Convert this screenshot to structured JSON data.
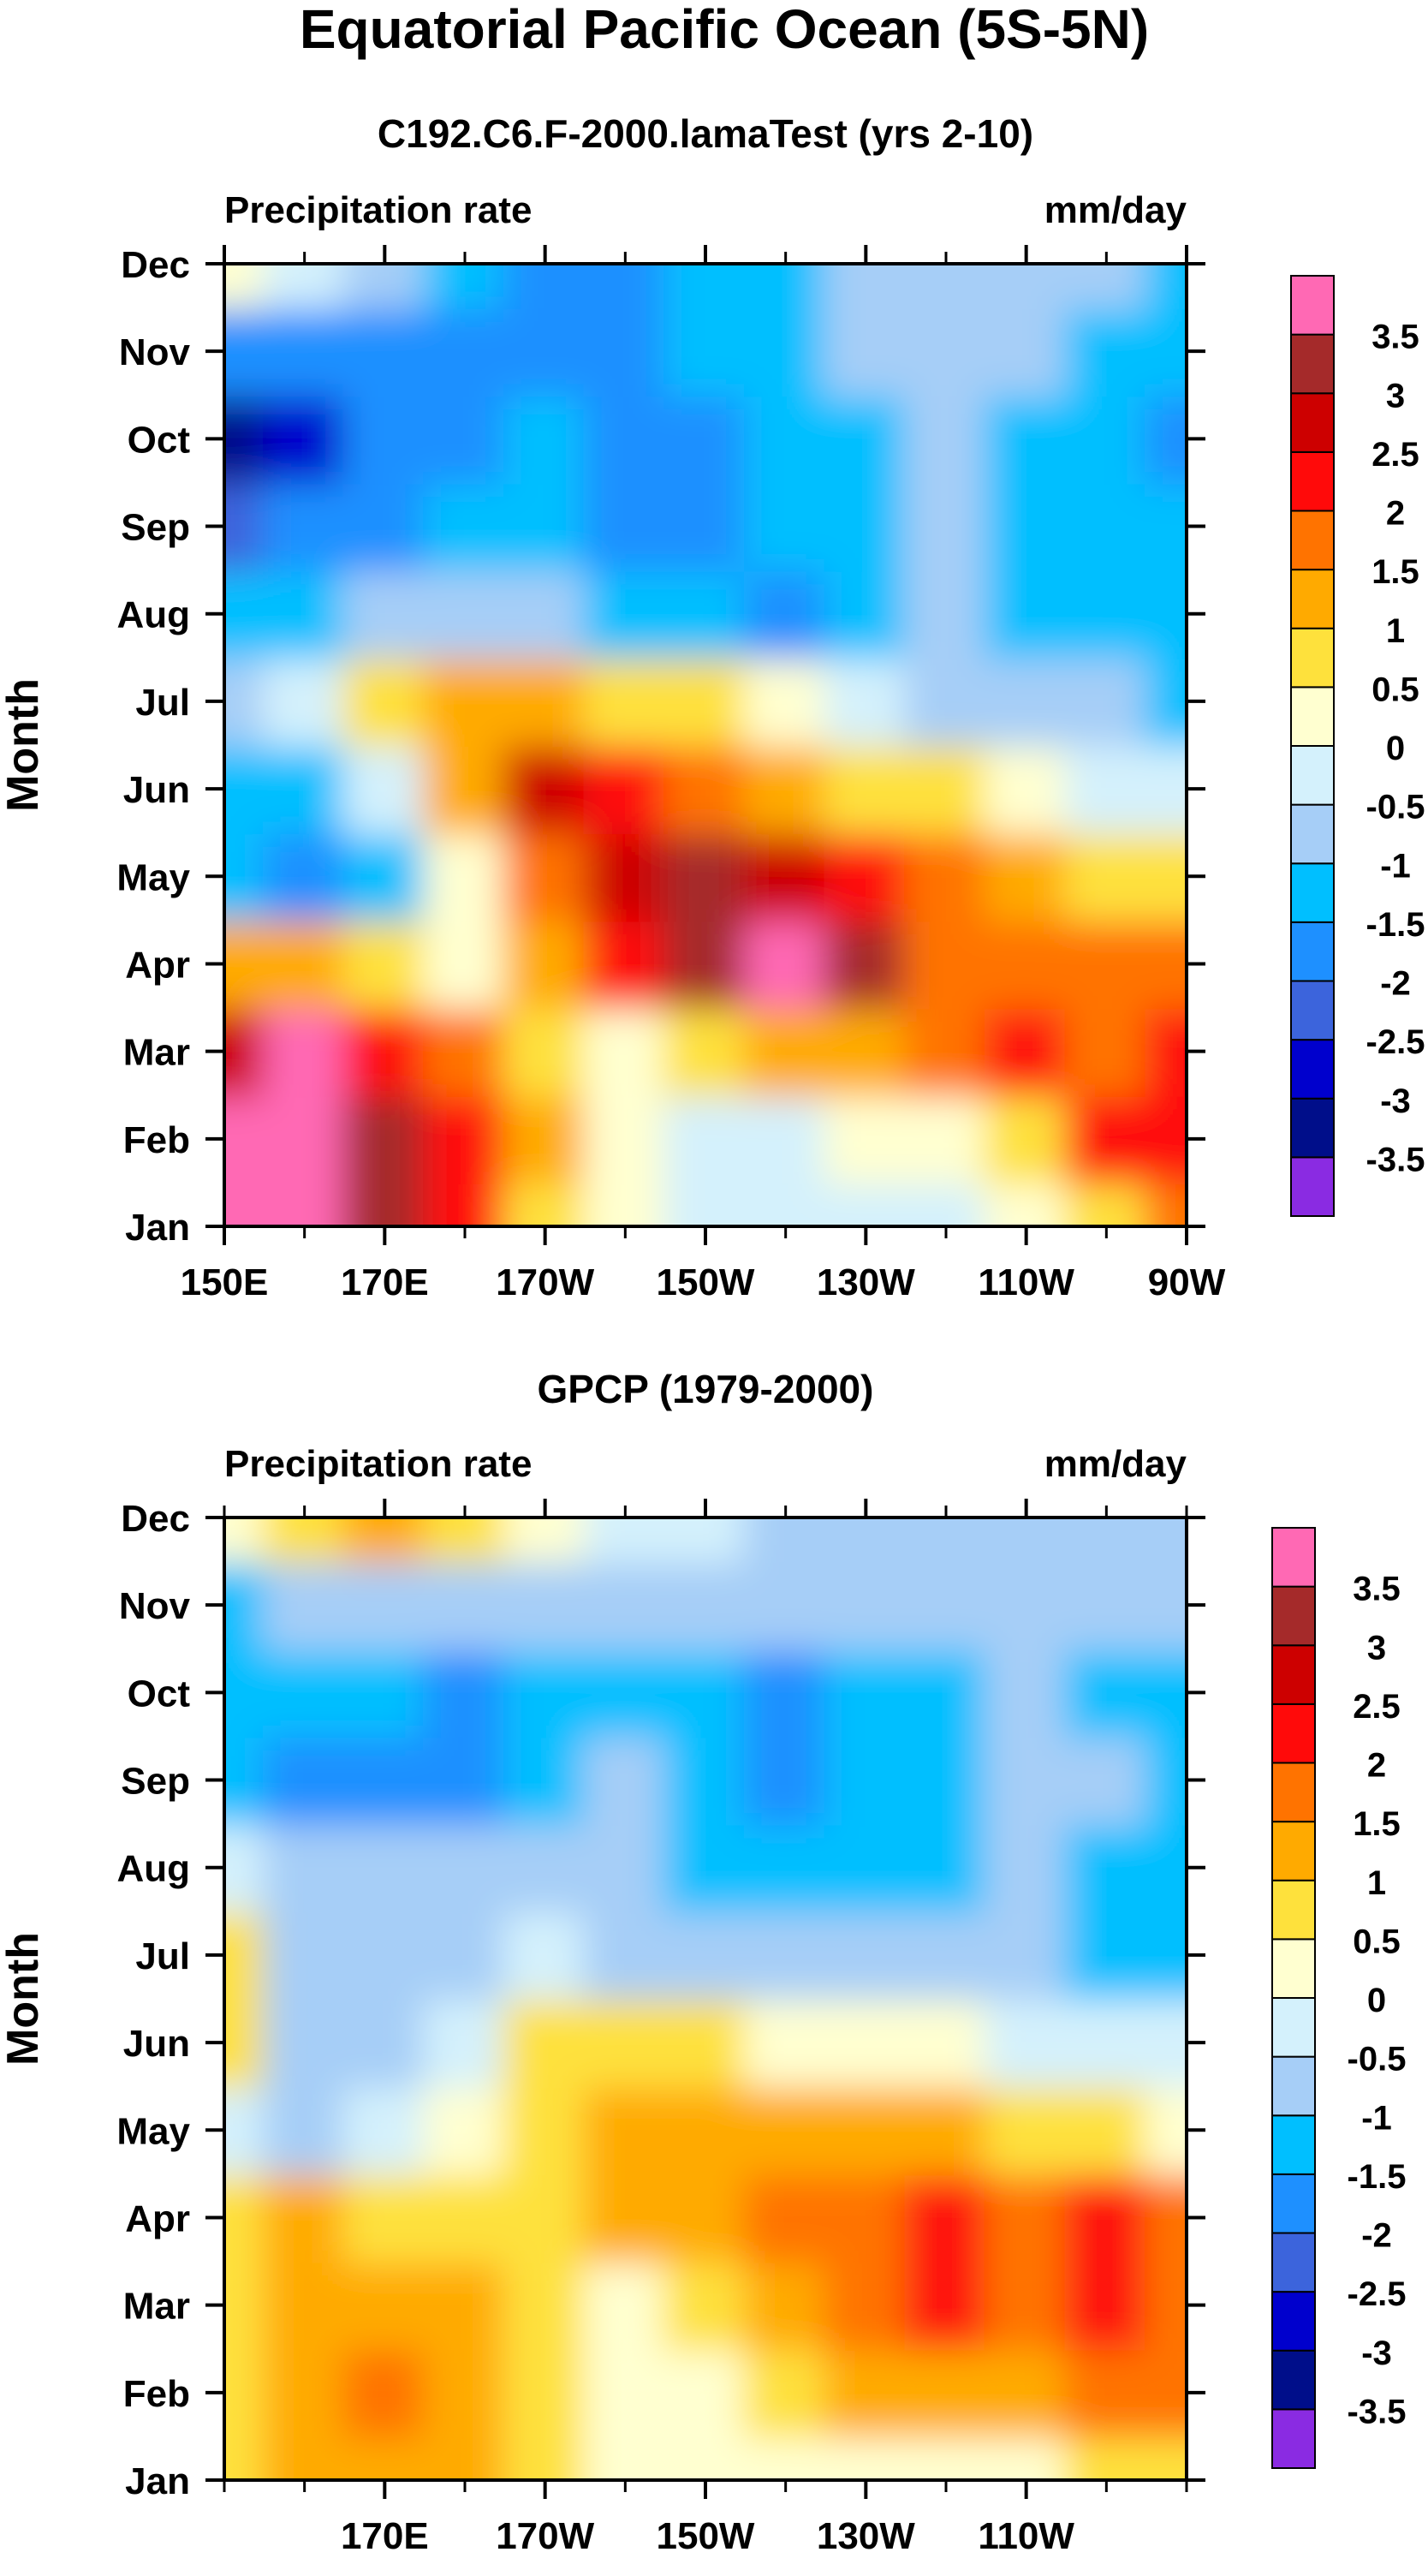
{
  "figure_title": "Equatorial Pacific Ocean (5S-5N)",
  "colors": {
    "levels": [
      "-3.5",
      "-3",
      "-2.5",
      "-2",
      "-1.5",
      "-1",
      "-0.5",
      "0",
      "0.5",
      "1",
      "1.5",
      "2",
      "2.5",
      "3",
      "3.5"
    ],
    "fills": [
      "#8a2be2",
      "#000e8a",
      "#0000cd",
      "#3c64dc",
      "#1e90ff",
      "#00bfff",
      "#a6cef7",
      "#d4f1fc",
      "#ffffd0",
      "#fee13c",
      "#ffaa00",
      "#ff7300",
      "#ff0a0a",
      "#cd0000",
      "#a52a2a",
      "#ff69b4"
    ]
  },
  "chart_data": [
    {
      "type": "heatmap",
      "subtitle": "C192.C6.F-2000.lamaTest (yrs 2-10)",
      "left_string": "Precipitation rate",
      "right_string": "mm/day",
      "ylabel": "Month",
      "xlabel": "",
      "ylim": [
        "Jan",
        "Dec"
      ],
      "xlim": [
        150,
        270
      ],
      "x_ticks": [
        150,
        170,
        190,
        210,
        230,
        250,
        270
      ],
      "x_tick_labels": [
        "150E",
        "170E",
        "170W",
        "150W",
        "130W",
        "110W",
        "90W"
      ],
      "y_tick_labels": [
        "Jan",
        "Feb",
        "Mar",
        "Apr",
        "May",
        "Jun",
        "Jul",
        "Aug",
        "Sep",
        "Oct",
        "Nov",
        "Dec"
      ],
      "legend_position": "right",
      "x_longitudes": [
        150,
        160,
        170,
        180,
        190,
        200,
        210,
        220,
        230,
        240,
        250,
        260,
        270
      ],
      "z": [
        [
          3.8,
          3.8,
          3.2,
          2.2,
          0.9,
          0.2,
          -0.3,
          -0.5,
          -0.4,
          -0.2,
          0.2,
          0.6,
          1.9
        ],
        [
          3.8,
          3.8,
          3.1,
          2.4,
          1.0,
          0.3,
          -0.2,
          -0.3,
          0.0,
          0.4,
          0.9,
          2.1,
          2.2
        ],
        [
          2.7,
          3.6,
          2.4,
          1.5,
          0.5,
          0.4,
          0.6,
          1.0,
          1.4,
          1.8,
          2.1,
          1.9,
          2.1
        ],
        [
          1.4,
          1.0,
          0.7,
          0.3,
          1.0,
          2.3,
          3.4,
          3.8,
          3.3,
          1.6,
          1.5,
          1.7,
          1.6
        ],
        [
          -1.2,
          -1.8,
          -1.2,
          0.0,
          1.8,
          2.6,
          3.2,
          2.8,
          2.4,
          1.9,
          1.2,
          0.9,
          0.7
        ],
        [
          -1.3,
          -1.2,
          -0.3,
          1.3,
          2.5,
          2.0,
          1.6,
          1.3,
          0.9,
          0.6,
          0.2,
          -0.1,
          -0.2
        ],
        [
          -0.6,
          -0.4,
          0.5,
          1.2,
          1.0,
          0.7,
          0.5,
          0.1,
          -0.2,
          -0.6,
          -0.8,
          -1.0,
          -1.2
        ],
        [
          -1.5,
          -1.2,
          -1.0,
          -0.8,
          -0.9,
          -1.2,
          -1.5,
          -1.6,
          -1.3,
          -1.0,
          -1.2,
          -1.4,
          -1.5
        ],
        [
          -2.4,
          -2.0,
          -1.6,
          -1.4,
          -1.5,
          -1.6,
          -1.6,
          -1.5,
          -1.2,
          -1.0,
          -1.3,
          -1.5,
          -1.5
        ],
        [
          -3.5,
          -2.8,
          -1.9,
          -1.6,
          -1.5,
          -1.6,
          -1.6,
          -1.5,
          -1.1,
          -0.9,
          -1.3,
          -1.5,
          -1.6
        ],
        [
          -2.0,
          -1.9,
          -1.7,
          -2.0,
          -2.0,
          -1.6,
          -1.5,
          -1.3,
          -1.0,
          -0.9,
          -1.0,
          -1.4,
          -1.5
        ],
        [
          0.3,
          -0.5,
          -0.8,
          -1.4,
          -1.8,
          -1.6,
          -1.3,
          -1.2,
          -0.9,
          -0.8,
          -0.8,
          -0.9,
          -1.3
        ]
      ]
    },
    {
      "type": "heatmap",
      "subtitle": "GPCP (1979-2000)",
      "left_string": "Precipitation rate",
      "right_string": "mm/day",
      "ylabel": "Month",
      "xlabel": "",
      "ylim": [
        "Jan",
        "Dec"
      ],
      "xlim": [
        150,
        270
      ],
      "x_ticks": [
        170,
        190,
        210,
        230,
        250
      ],
      "x_tick_labels": [
        "170E",
        "170W",
        "150W",
        "130W",
        "110W"
      ],
      "y_tick_labels": [
        "Jan",
        "Feb",
        "Mar",
        "Apr",
        "May",
        "Jun",
        "Jul",
        "Aug",
        "Sep",
        "Oct",
        "Nov",
        "Dec"
      ],
      "legend_position": "right",
      "x_longitudes": [
        150,
        160,
        170,
        180,
        190,
        200,
        210,
        220,
        230,
        240,
        250,
        260,
        270
      ],
      "z": [
        [
          0.5,
          1.0,
          1.3,
          1.2,
          0.8,
          0.2,
          0.0,
          0.1,
          0.2,
          0.2,
          0.3,
          0.6,
          0.9
        ],
        [
          0.8,
          1.2,
          1.5,
          1.3,
          0.9,
          0.3,
          0.2,
          0.6,
          1.0,
          1.2,
          1.3,
          1.5,
          1.6
        ],
        [
          0.7,
          1.0,
          1.2,
          1.1,
          0.9,
          0.4,
          0.8,
          1.4,
          1.9,
          2.1,
          1.8,
          2.0,
          1.8
        ],
        [
          0.8,
          1.0,
          0.9,
          0.7,
          0.9,
          1.0,
          1.3,
          1.6,
          1.9,
          2.2,
          1.8,
          2.1,
          1.7
        ],
        [
          -0.4,
          -0.6,
          -0.4,
          0.1,
          0.8,
          1.2,
          1.3,
          1.2,
          1.1,
          1.0,
          0.8,
          0.6,
          0.4
        ],
        [
          0.6,
          -0.8,
          -0.7,
          -0.3,
          0.5,
          0.7,
          0.6,
          0.4,
          0.2,
          0.0,
          -0.2,
          -0.3,
          -0.4
        ],
        [
          0.7,
          -0.6,
          -0.8,
          -0.7,
          -0.5,
          -0.6,
          -0.6,
          -0.7,
          -0.8,
          -0.9,
          -1.0,
          -1.1,
          -1.2
        ],
        [
          -0.4,
          -0.7,
          -0.9,
          -0.9,
          -0.9,
          -0.8,
          -1.2,
          -1.4,
          -1.3,
          -1.2,
          -1.0,
          -1.2,
          -1.3
        ],
        [
          -1.2,
          -1.6,
          -1.8,
          -1.6,
          -1.3,
          -1.0,
          -1.5,
          -1.6,
          -1.5,
          -1.3,
          -0.9,
          -1.0,
          -1.3
        ],
        [
          -1.3,
          -1.2,
          -1.5,
          -1.9,
          -1.5,
          -1.1,
          -1.4,
          -1.6,
          -1.5,
          -1.2,
          -0.9,
          -1.1,
          -1.4
        ],
        [
          -1.3,
          -0.8,
          -0.9,
          -0.9,
          -0.8,
          -0.7,
          -0.8,
          -0.8,
          -0.9,
          -0.9,
          -0.8,
          -0.8,
          -0.8
        ],
        [
          0.1,
          0.9,
          1.4,
          0.9,
          0.3,
          -0.2,
          -0.5,
          -0.6,
          -0.7,
          -0.8,
          -0.8,
          -0.8,
          -0.8
        ]
      ]
    }
  ]
}
